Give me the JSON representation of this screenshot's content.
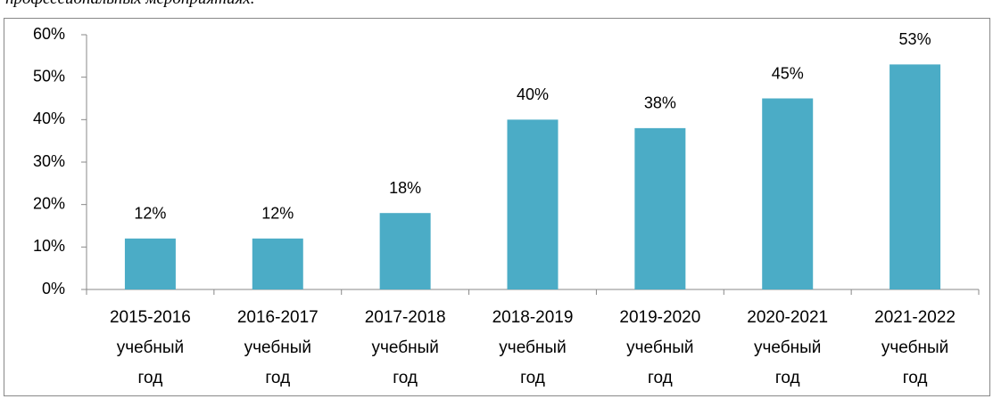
{
  "caption": "профессиональных мероприятиях.",
  "chart_data": {
    "type": "bar",
    "categories": [
      "2015-2016 учебный год",
      "2016-2017 учебный год",
      "2017-2018 учебный год",
      "2018-2019 учебный год",
      "2019-2020 учебный год",
      "2020-2021 учебный год",
      "2021-2022 учебный год"
    ],
    "values": [
      12,
      12,
      18,
      40,
      38,
      45,
      53
    ],
    "value_labels": [
      "12%",
      "12%",
      "18%",
      "40%",
      "38%",
      "45%",
      "53%"
    ],
    "color": "#4bacc6",
    "ylim": [
      0,
      60
    ],
    "yticks": [
      {
        "value": 0,
        "label": "0%"
      },
      {
        "value": 10,
        "label": "10%"
      },
      {
        "value": 20,
        "label": "20%"
      },
      {
        "value": 30,
        "label": "30%"
      },
      {
        "value": 40,
        "label": "40%"
      },
      {
        "value": 50,
        "label": "50%"
      },
      {
        "value": 60,
        "label": "60%"
      }
    ],
    "grid": false
  }
}
